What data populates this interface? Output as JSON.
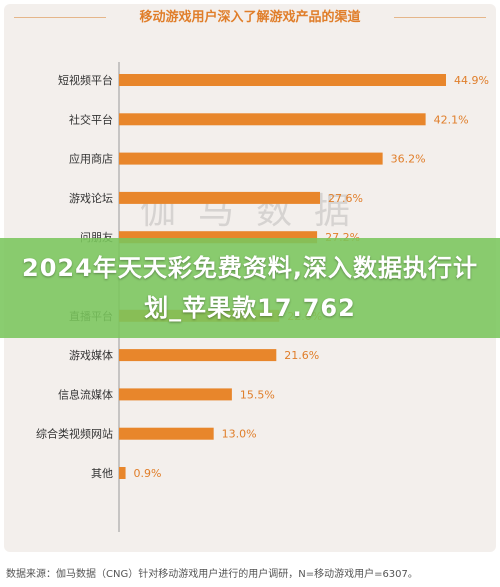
{
  "chart_data": {
    "type": "bar",
    "orientation": "horizontal",
    "title": "移动游戏用户深入了解游戏产品的渠道",
    "categories": [
      "短视频平台",
      "社交平台",
      "应用商店",
      "游戏论坛",
      "问朋友",
      "",
      "直播平台",
      "游戏媒体",
      "信息流媒体",
      "综合类视频网站",
      "其他"
    ],
    "values": [
      44.9,
      42.1,
      36.2,
      27.6,
      27.2,
      null,
      22.0,
      21.6,
      15.5,
      13.0,
      0.9
    ],
    "value_labels": [
      "44.9%",
      "42.1%",
      "36.2%",
      "27.6%",
      "27.2%",
      "",
      "22.0%",
      "21.6%",
      "15.5%",
      "13.0%",
      "0.9%"
    ],
    "xlim": [
      0,
      50
    ],
    "grid": false,
    "bar_color": "#e8862b"
  },
  "watermark": "伽马数据",
  "banner": {
    "text": "2024年天天彩免费资料,深入数据执行计划_苹果款17.762",
    "color": "#7ac65c"
  },
  "source_note": "数据来源：伽马数据（CNG）针对移动游戏用户进行的用户调研，N=移动游戏用户=6307。"
}
